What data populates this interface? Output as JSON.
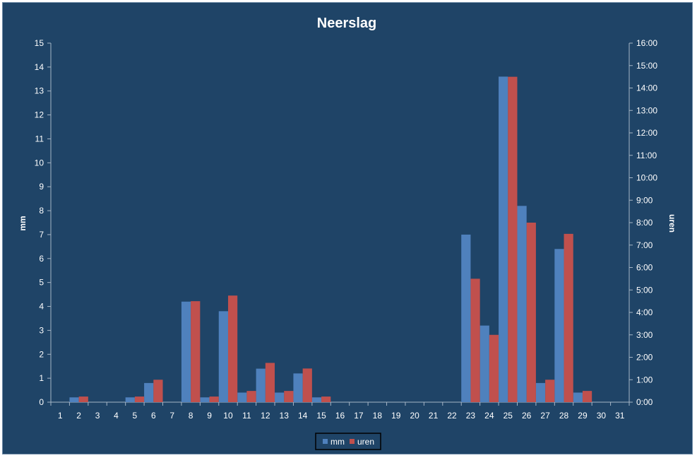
{
  "chart_data": {
    "type": "bar",
    "title": "Neerslag",
    "ylabel": "mm",
    "y2label": "uren",
    "ylim": [
      0,
      15
    ],
    "y2lim_hours": [
      0,
      16
    ],
    "y_ticks": [
      "0",
      "1",
      "2",
      "3",
      "4",
      "5",
      "6",
      "7",
      "8",
      "9",
      "10",
      "11",
      "12",
      "13",
      "14",
      "15"
    ],
    "y2_ticks": [
      "0:00",
      "1:00",
      "2:00",
      "3:00",
      "4:00",
      "5:00",
      "6:00",
      "7:00",
      "8:00",
      "9:00",
      "10:00",
      "11:00",
      "12:00",
      "13:00",
      "14:00",
      "15:00",
      "16:00"
    ],
    "categories": [
      "1",
      "2",
      "3",
      "4",
      "5",
      "6",
      "7",
      "8",
      "9",
      "10",
      "11",
      "12",
      "13",
      "14",
      "15",
      "16",
      "17",
      "18",
      "19",
      "20",
      "21",
      "22",
      "23",
      "24",
      "25",
      "26",
      "27",
      "28",
      "29",
      "30",
      "31"
    ],
    "grid": false,
    "legend": "bottom",
    "series": [
      {
        "name": "mm",
        "axis": "left",
        "color": "#4f81bd",
        "values": [
          0,
          0.2,
          0,
          0,
          0.2,
          0.8,
          0,
          4.2,
          0.2,
          3.8,
          0.4,
          1.4,
          0.4,
          1.2,
          0.2,
          0,
          0,
          0,
          0,
          0,
          0,
          0,
          7.0,
          3.2,
          13.6,
          8.2,
          0.8,
          6.4,
          0.4,
          0,
          0
        ]
      },
      {
        "name": "uren",
        "axis": "right",
        "unit": "hours",
        "color": "#c0504d",
        "values": [
          0,
          0.25,
          0,
          0,
          0.25,
          1.0,
          0,
          4.5,
          0.25,
          4.75,
          0.5,
          1.75,
          0.5,
          1.5,
          0.25,
          0,
          0,
          0,
          0,
          0,
          0,
          0,
          5.5,
          3.0,
          14.5,
          8.0,
          1.0,
          7.5,
          0.5,
          0,
          0
        ]
      }
    ]
  },
  "colors": {
    "background": "#1f4467",
    "axis": "#a6b6c6",
    "text": "#ffffff"
  }
}
